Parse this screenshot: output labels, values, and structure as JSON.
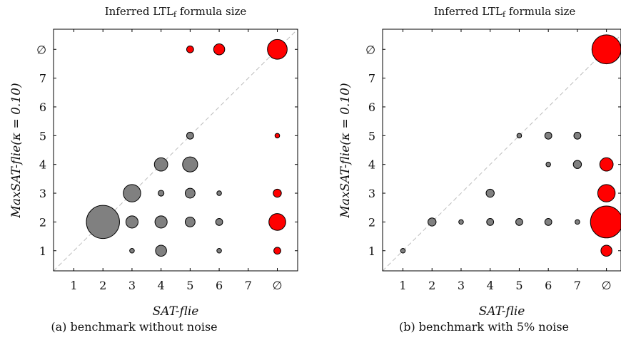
{
  "chart_data": [
    {
      "type": "scatter",
      "title_main": "Inferred LTL",
      "title_sub": "f",
      "title_tail": " formula size",
      "xlabel": "SAT-flie",
      "ylabel": "MaxSAT-flie(κ = 0.10)",
      "caption": "(a) benchmark without noise",
      "x_ticks": [
        "1",
        "2",
        "3",
        "4",
        "5",
        "6",
        "7",
        "∅"
      ],
      "y_ticks": [
        "1",
        "2",
        "3",
        "4",
        "5",
        "6",
        "7",
        "∅"
      ],
      "xlim": [
        0.3,
        8.7
      ],
      "ylim": [
        0.3,
        8.7
      ],
      "diagonal": true,
      "colors": {
        "matched": "#808080",
        "none": "#ff0000"
      },
      "points": [
        {
          "x": 5,
          "y": 8,
          "r": 0.12,
          "c": "none"
        },
        {
          "x": 6,
          "y": 8,
          "r": 0.19,
          "c": "none"
        },
        {
          "x": 8,
          "y": 8,
          "r": 0.34,
          "c": "none"
        },
        {
          "x": 5,
          "y": 5,
          "r": 0.12,
          "c": "matched"
        },
        {
          "x": 8,
          "y": 5,
          "r": 0.08,
          "c": "none"
        },
        {
          "x": 4,
          "y": 4,
          "r": 0.23,
          "c": "matched"
        },
        {
          "x": 5,
          "y": 4,
          "r": 0.26,
          "c": "matched"
        },
        {
          "x": 3,
          "y": 3,
          "r": 0.3,
          "c": "matched"
        },
        {
          "x": 4,
          "y": 3,
          "r": 0.1,
          "c": "matched"
        },
        {
          "x": 5,
          "y": 3,
          "r": 0.17,
          "c": "matched"
        },
        {
          "x": 6,
          "y": 3,
          "r": 0.08,
          "c": "matched"
        },
        {
          "x": 8,
          "y": 3,
          "r": 0.14,
          "c": "none"
        },
        {
          "x": 2,
          "y": 2,
          "r": 0.57,
          "c": "matched"
        },
        {
          "x": 3,
          "y": 2,
          "r": 0.21,
          "c": "matched"
        },
        {
          "x": 4,
          "y": 2,
          "r": 0.21,
          "c": "matched"
        },
        {
          "x": 5,
          "y": 2,
          "r": 0.17,
          "c": "matched"
        },
        {
          "x": 6,
          "y": 2,
          "r": 0.12,
          "c": "matched"
        },
        {
          "x": 8,
          "y": 2,
          "r": 0.29,
          "c": "none"
        },
        {
          "x": 3,
          "y": 1,
          "r": 0.08,
          "c": "matched"
        },
        {
          "x": 4,
          "y": 1,
          "r": 0.19,
          "c": "matched"
        },
        {
          "x": 6,
          "y": 1,
          "r": 0.08,
          "c": "matched"
        },
        {
          "x": 8,
          "y": 1,
          "r": 0.12,
          "c": "none"
        }
      ]
    },
    {
      "type": "scatter",
      "title_main": "Inferred LTL",
      "title_sub": "f",
      "title_tail": " formula size",
      "xlabel": "SAT-flie",
      "ylabel": "MaxSAT-flie(κ = 0.10)",
      "caption": "(b) benchmark with 5% noise",
      "x_ticks": [
        "1",
        "2",
        "3",
        "4",
        "5",
        "6",
        "7",
        "∅"
      ],
      "y_ticks": [
        "1",
        "2",
        "3",
        "4",
        "5",
        "6",
        "7",
        "∅"
      ],
      "xlim": [
        0.3,
        8.5
      ],
      "ylim": [
        0.3,
        8.7
      ],
      "diagonal": true,
      "colors": {
        "matched": "#808080",
        "none": "#ff0000"
      },
      "points": [
        {
          "x": 8,
          "y": 8,
          "r": 0.5,
          "c": "none"
        },
        {
          "x": 5,
          "y": 5,
          "r": 0.08,
          "c": "matched"
        },
        {
          "x": 6,
          "y": 5,
          "r": 0.12,
          "c": "matched"
        },
        {
          "x": 7,
          "y": 5,
          "r": 0.12,
          "c": "matched"
        },
        {
          "x": 6,
          "y": 4,
          "r": 0.08,
          "c": "matched"
        },
        {
          "x": 7,
          "y": 4,
          "r": 0.14,
          "c": "matched"
        },
        {
          "x": 8,
          "y": 4,
          "r": 0.23,
          "c": "none"
        },
        {
          "x": 4,
          "y": 3,
          "r": 0.14,
          "c": "matched"
        },
        {
          "x": 8,
          "y": 3,
          "r": 0.3,
          "c": "none"
        },
        {
          "x": 2,
          "y": 2,
          "r": 0.14,
          "c": "matched"
        },
        {
          "x": 3,
          "y": 2,
          "r": 0.08,
          "c": "matched"
        },
        {
          "x": 4,
          "y": 2,
          "r": 0.12,
          "c": "matched"
        },
        {
          "x": 5,
          "y": 2,
          "r": 0.12,
          "c": "matched"
        },
        {
          "x": 6,
          "y": 2,
          "r": 0.12,
          "c": "matched"
        },
        {
          "x": 7,
          "y": 2,
          "r": 0.08,
          "c": "matched"
        },
        {
          "x": 8,
          "y": 2,
          "r": 0.55,
          "c": "none"
        },
        {
          "x": 1,
          "y": 1,
          "r": 0.08,
          "c": "matched"
        },
        {
          "x": 8,
          "y": 1,
          "r": 0.19,
          "c": "none"
        }
      ]
    }
  ]
}
